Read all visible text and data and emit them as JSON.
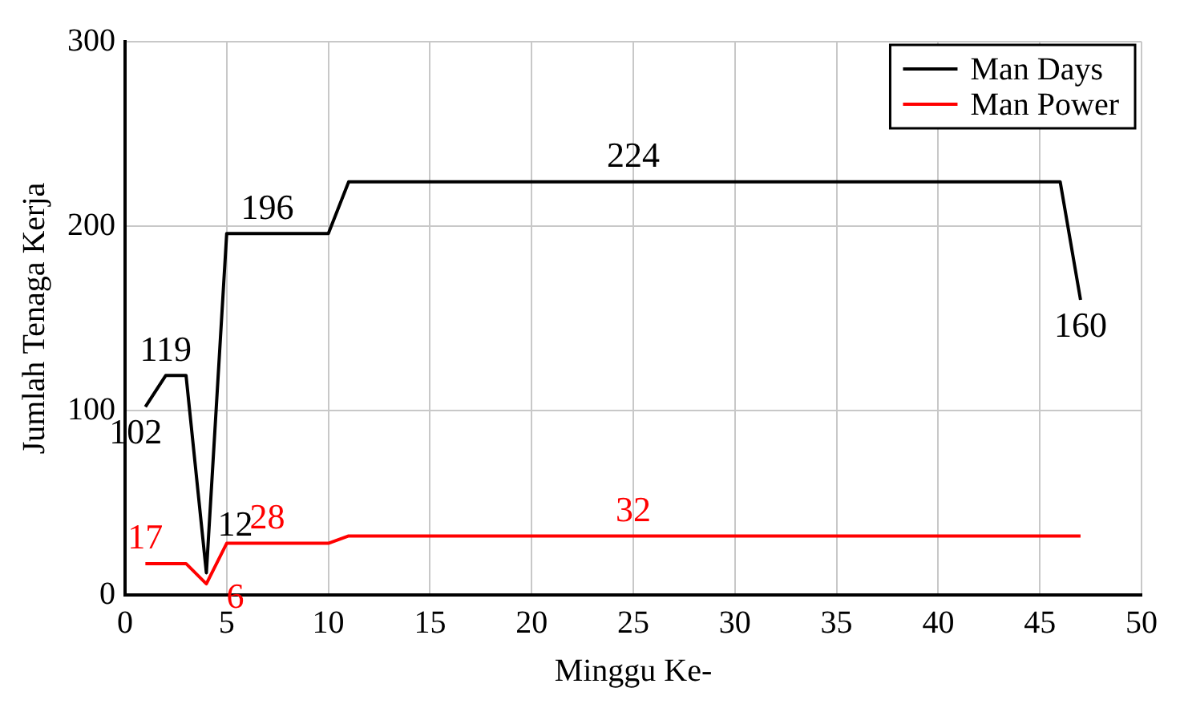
{
  "chart_data": {
    "type": "line",
    "xlabel": "Minggu Ke-",
    "ylabel": "Jumlah Tenaga Kerja",
    "xlim": [
      0,
      50
    ],
    "xticks": [
      0,
      5,
      10,
      15,
      20,
      25,
      30,
      35,
      40,
      45,
      50
    ],
    "ylim": [
      0,
      300
    ],
    "yticks": [
      0,
      100,
      200,
      300
    ],
    "grid": true,
    "legend": "top right",
    "marker": "none",
    "line_style": "solid",
    "series": [
      {
        "name": "Man Days",
        "color": "#000000",
        "x": [
          1,
          2,
          3,
          4,
          5,
          7,
          10,
          11,
          25,
          46,
          47
        ],
        "values": [
          102,
          119,
          119,
          12,
          196,
          196,
          196,
          224,
          224,
          224,
          160
        ],
        "value_labels": [
          "102",
          "119",
          null,
          "12",
          null,
          "196",
          null,
          null,
          "224",
          null,
          "160"
        ]
      },
      {
        "name": "Man Power",
        "color": "#ff0000",
        "x": [
          1,
          3,
          4,
          5,
          7,
          10,
          11,
          25,
          47
        ],
        "values": [
          17,
          17,
          6,
          28,
          28,
          28,
          32,
          32,
          32
        ],
        "value_labels": [
          "17",
          null,
          "6",
          null,
          "28",
          null,
          null,
          "32",
          null
        ]
      }
    ]
  }
}
